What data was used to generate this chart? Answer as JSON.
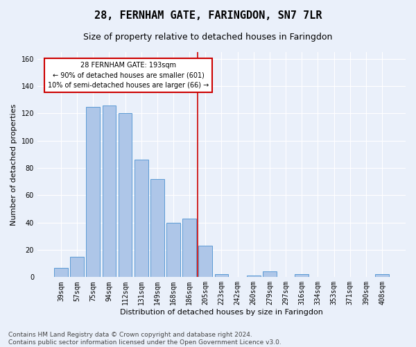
{
  "title": "28, FERNHAM GATE, FARINGDON, SN7 7LR",
  "subtitle": "Size of property relative to detached houses in Faringdon",
  "xlabel": "Distribution of detached houses by size in Faringdon",
  "ylabel": "Number of detached properties",
  "categories": [
    "39sqm",
    "57sqm",
    "75sqm",
    "94sqm",
    "112sqm",
    "131sqm",
    "149sqm",
    "168sqm",
    "186sqm",
    "205sqm",
    "223sqm",
    "242sqm",
    "260sqm",
    "279sqm",
    "297sqm",
    "316sqm",
    "334sqm",
    "353sqm",
    "371sqm",
    "390sqm",
    "408sqm"
  ],
  "values": [
    7,
    15,
    125,
    126,
    120,
    86,
    72,
    40,
    43,
    23,
    2,
    0,
    1,
    4,
    0,
    2,
    0,
    0,
    0,
    0,
    2
  ],
  "bar_color": "#aec6e8",
  "bar_edge_color": "#5b9bd5",
  "annotation_text": "28 FERNHAM GATE: 193sqm\n← 90% of detached houses are smaller (601)\n10% of semi-detached houses are larger (66) →",
  "annotation_box_color": "#ffffff",
  "annotation_box_edge_color": "#cc0000",
  "vline_color": "#cc0000",
  "vline_x_index": 8.5,
  "ylim": [
    0,
    165
  ],
  "yticks": [
    0,
    20,
    40,
    60,
    80,
    100,
    120,
    140,
    160
  ],
  "footer_text": "Contains HM Land Registry data © Crown copyright and database right 2024.\nContains public sector information licensed under the Open Government Licence v3.0.",
  "bg_color": "#eaf0fa",
  "grid_color": "#ffffff",
  "title_fontsize": 11,
  "subtitle_fontsize": 9,
  "axis_label_fontsize": 8,
  "tick_fontsize": 7,
  "annotation_fontsize": 7,
  "footer_fontsize": 6.5
}
